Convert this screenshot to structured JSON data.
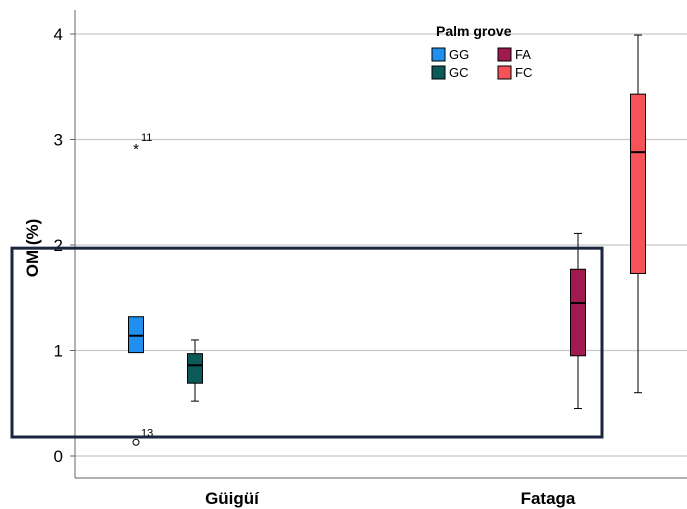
{
  "chart_data": {
    "type": "boxplot",
    "ylabel": "OM (%)",
    "ylim": [
      0,
      4.2
    ],
    "yticks": [
      0,
      1,
      2,
      3,
      4
    ],
    "grid": "horizontal",
    "categories": [
      "Güigüí",
      "Fataga"
    ],
    "legend": {
      "title": "Palm grove",
      "placement": "top-right",
      "items": [
        {
          "label": "GG",
          "color": "#1f8ff0"
        },
        {
          "label": "FA",
          "color": "#a0194f"
        },
        {
          "label": "GC",
          "color": "#0b5a57"
        },
        {
          "label": "FC",
          "color": "#f6525a"
        }
      ]
    },
    "series": [
      {
        "name": "GG",
        "category": "Güigüí",
        "color": "#1f8ff0",
        "whisker_low": 0.98,
        "q1": 0.98,
        "median": 1.14,
        "q3": 1.32,
        "whisker_high": 1.32,
        "outliers": [
          {
            "y": 2.93,
            "marker": "*",
            "label": "11"
          },
          {
            "y": 0.13,
            "marker": "o",
            "label": "13"
          }
        ]
      },
      {
        "name": "GC",
        "category": "Güigüí",
        "color": "#0b5a57",
        "whisker_low": 0.52,
        "q1": 0.69,
        "median": 0.86,
        "q3": 0.97,
        "whisker_high": 1.1,
        "outliers": []
      },
      {
        "name": "FA",
        "category": "Fataga",
        "color": "#a0194f",
        "whisker_low": 0.45,
        "q1": 0.95,
        "median": 1.45,
        "q3": 1.77,
        "whisker_high": 2.11,
        "outliers": []
      },
      {
        "name": "FC",
        "category": "Fataga",
        "color": "#f6525a",
        "whisker_low": 0.6,
        "q1": 1.73,
        "median": 2.88,
        "q3": 3.43,
        "whisker_high": 3.99,
        "outliers": []
      }
    ],
    "highlight_box": {
      "y_from": 0.18,
      "y_to": 1.97,
      "categories": [
        "Güigüí",
        "Fataga"
      ],
      "color": "#1b2540"
    }
  }
}
